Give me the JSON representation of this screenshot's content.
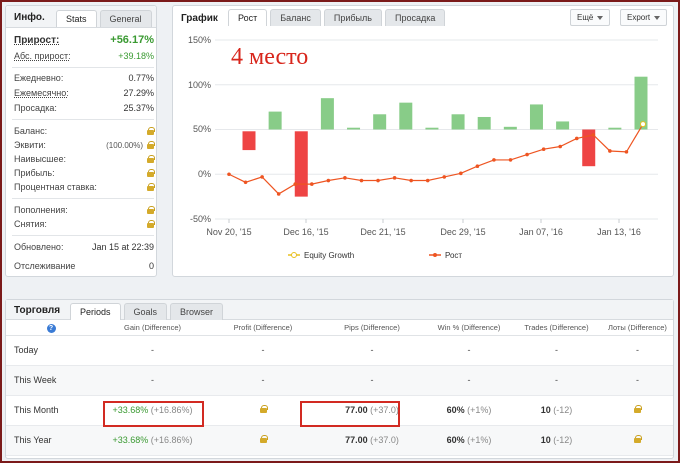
{
  "info": {
    "title": "Инфо.",
    "tabs": [
      "Stats",
      "General"
    ],
    "gain_label": "Прирост:",
    "gain_value": "+56.17%",
    "abs_gain_label": "Абс. прирост:",
    "abs_gain_value": "+39.18%",
    "daily_label": "Ежедневно:",
    "daily_value": "0.77%",
    "monthly_label": "Ежемесячно:",
    "monthly_value": "27.29%",
    "drawdown_label": "Просадка:",
    "drawdown_value": "25.37%",
    "balance_label": "Баланс:",
    "equity_label": "Эквити:",
    "equity_value": "(100.00%)",
    "highest_label": "Наивысшее:",
    "profit_label": "Прибыль:",
    "interest_label": "Процентная ставка:",
    "deposits_label": "Пополнения:",
    "withdrawals_label": "Снятия:",
    "updated_label": "Обновлено:",
    "updated_value": "Jan 15 at 22:39",
    "tracking_label": "Отслеживание",
    "tracking_value": "0"
  },
  "chart_panel": {
    "title": "График",
    "tabs": [
      "Рост",
      "Баланс",
      "Прибыль",
      "Просадка"
    ],
    "menu_label": "Ещё",
    "export_label": "Export",
    "overlay_text": "4 место",
    "legend": [
      "Equity Growth",
      "Рост"
    ]
  },
  "chart_data": {
    "type": "bar",
    "ylim": [
      -50,
      150
    ],
    "y_ticks": [
      "150%",
      "100%",
      "50%",
      "0%",
      "-50%"
    ],
    "x_tick_labels": [
      "Nov 20, '15",
      "Dec 16, '15",
      "Dec 21, '15",
      "Dec 29, '15",
      "Jan 07, '16",
      "Jan 13, '16"
    ],
    "grid": true,
    "legend_position": "bottom",
    "colors": {
      "up": "#88cc88",
      "down": "#ee4444",
      "line": "#ee5522",
      "equity": "#e8c020"
    },
    "bars": [
      {
        "start": 48,
        "end": 27
      },
      {
        "start": 50,
        "end": 70
      },
      {
        "start": 48,
        "end": -25
      },
      {
        "start": 50,
        "end": 85
      },
      {
        "start": 50,
        "end": 52
      },
      {
        "start": 50,
        "end": 67
      },
      {
        "start": 50,
        "end": 80
      },
      {
        "start": 50,
        "end": 52
      },
      {
        "start": 50,
        "end": 67
      },
      {
        "start": 50,
        "end": 64
      },
      {
        "start": 50,
        "end": 53
      },
      {
        "start": 50,
        "end": 78
      },
      {
        "start": 50,
        "end": 59
      },
      {
        "start": 50,
        "end": 9
      },
      {
        "start": 50,
        "end": 52
      },
      {
        "start": 50,
        "end": 109
      }
    ],
    "series": [
      {
        "name": "Рост",
        "values": [
          0,
          -9,
          -3,
          -22,
          -11,
          -11,
          -7,
          -4,
          -7,
          -7,
          -4,
          -7,
          -7,
          -3,
          1,
          9,
          16,
          16,
          22,
          28,
          31,
          40,
          44,
          26,
          25,
          56
        ]
      }
    ]
  },
  "trading": {
    "title": "Торговля",
    "tabs": [
      "Periods",
      "Goals",
      "Browser"
    ],
    "help_icon": "?",
    "columns": [
      "Gain (Difference)",
      "Profit (Difference)",
      "Pips (Difference)",
      "Win % (Difference)",
      "Trades (Difference)",
      "Лоты (Difference)"
    ],
    "rows": [
      {
        "name": "Today",
        "gain": "-",
        "gain_diff": "",
        "profit": "-",
        "pips": "-",
        "pips_diff": "",
        "win": "-",
        "win_diff": "",
        "trades": "-",
        "trades_diff": "",
        "lots": "-"
      },
      {
        "name": "This Week",
        "gain": "-",
        "gain_diff": "",
        "profit": "-",
        "pips": "-",
        "pips_diff": "",
        "win": "-",
        "win_diff": "",
        "trades": "-",
        "trades_diff": "",
        "lots": "-"
      },
      {
        "name": "This Month",
        "gain": "+33.68%",
        "gain_diff": "(+16.86%)",
        "profit": "lock",
        "pips": "77.00",
        "pips_diff": "(+37.0)",
        "win": "60%",
        "win_diff": "(+1%)",
        "trades": "10",
        "trades_diff": "(-12)",
        "lots": "lock"
      },
      {
        "name": "This Year",
        "gain": "+33.68%",
        "gain_diff": "(+16.86%)",
        "profit": "lock",
        "pips": "77.00",
        "pips_diff": "(+37.0)",
        "win": "60%",
        "win_diff": "(+1%)",
        "trades": "10",
        "trades_diff": "(-12)",
        "lots": "lock"
      }
    ]
  }
}
